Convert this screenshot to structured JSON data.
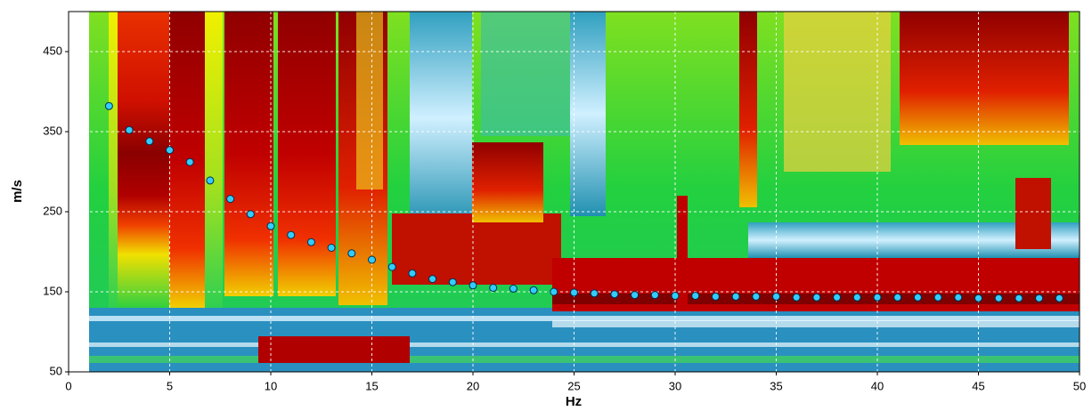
{
  "chart_data": {
    "type": "scatter",
    "xlabel": "Hz",
    "ylabel": "m/s",
    "x": [
      2,
      3,
      4,
      5,
      6,
      7,
      8,
      9,
      10,
      11,
      12,
      13,
      14,
      15,
      16,
      17,
      18,
      19,
      20,
      21,
      22,
      23,
      24,
      25,
      26,
      27,
      28,
      29,
      30,
      31,
      32,
      33,
      34,
      35,
      36,
      37,
      38,
      39,
      40,
      41,
      42,
      43,
      44,
      45,
      46,
      47,
      48,
      49
    ],
    "values": [
      382,
      352,
      338,
      327,
      312,
      289,
      266,
      247,
      232,
      221,
      212,
      205,
      198,
      190,
      181,
      173,
      166,
      162,
      158,
      155,
      154,
      152,
      150,
      149,
      148,
      147,
      146,
      146,
      145,
      145,
      144,
      144,
      144,
      144,
      143,
      143,
      143,
      143,
      143,
      143,
      143,
      143,
      143,
      142,
      142,
      142,
      142,
      142
    ],
    "color": "#33ccff",
    "xlim": [
      0,
      50
    ],
    "ylim": [
      50,
      500
    ],
    "xticks": [
      0,
      5,
      10,
      15,
      20,
      25,
      30,
      35,
      40,
      45,
      50
    ],
    "yticks": [
      50,
      150,
      250,
      350,
      450
    ],
    "grid": true
  }
}
